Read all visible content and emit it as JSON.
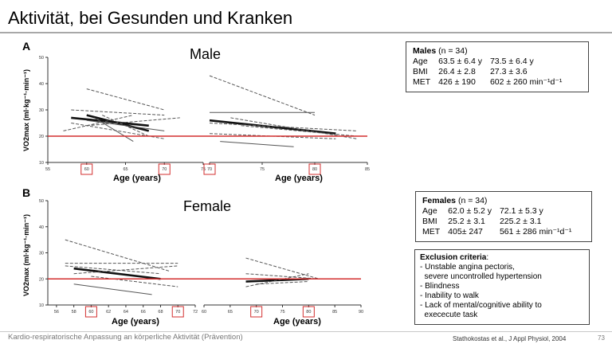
{
  "slide": {
    "title": "Aktivität, bei Gesunden und Kranken",
    "footer_text": "Kardio-respiratorische Anpassung an körperliche Aktivität (Prävention)",
    "citation": "Stathokostas et al., J Appl Physiol, 2004",
    "page_number": "73"
  },
  "panels": [
    {
      "letter": "A",
      "heading": "Male",
      "y_axis_label": "VO2max (ml·kg⁻¹·min⁻¹)",
      "x_axis_label": "Age (years)",
      "left_ticks": [
        "55",
        "60",
        "65",
        "70",
        "75"
      ],
      "right_ticks": [
        "70",
        "75",
        "80",
        "85"
      ],
      "y_ticks": [
        "10",
        "20",
        "30",
        "40",
        "50"
      ]
    },
    {
      "letter": "B",
      "heading": "Female",
      "y_axis_label": "VO2max (ml·kg⁻¹·min⁻¹)",
      "x_axis_label": "Age (years)",
      "left_ticks": [
        "56",
        "58",
        "60",
        "62",
        "64",
        "66",
        "68",
        "70",
        "72"
      ],
      "right_ticks": [
        "60",
        "65",
        "70",
        "75",
        "80",
        "85",
        "90"
      ],
      "y_ticks": [
        "10",
        "20",
        "30",
        "40",
        "50"
      ]
    }
  ],
  "males_box": {
    "header_bold": "Males",
    "header_rest": " (n = 34)",
    "rows": [
      [
        "Age",
        "63.5 ± 6.4 y",
        "73.5 ± 6.4 y"
      ],
      [
        "BMI",
        "26.4 ± 2.8",
        "27.3 ± 3.6"
      ],
      [
        "MET",
        "426 ± 190",
        "602 ± 260 min⁻¹d⁻¹"
      ]
    ]
  },
  "females_box": {
    "header_bold": "Females",
    "header_rest": "  (n = 34)",
    "rows": [
      [
        "Age",
        "62.0 ± 5.2 y",
        "72.1 ± 5.3 y"
      ],
      [
        "BMI",
        "25.2 ± 3.1",
        "225.2 ± 3.1"
      ],
      [
        "MET",
        "405± 247",
        "561 ± 286 min⁻¹d⁻¹"
      ]
    ]
  },
  "exclusion": {
    "title": "Exclusion criteria",
    "items": [
      "- Unstable angina pectoris,",
      "  severe uncontrolled hypertension",
      "- Blindness",
      "- Inability to walk",
      "- Lack of mental/cognitive ability to",
      "  exececute task"
    ]
  },
  "colors": {
    "threshold_line": "#d32f2f",
    "highlight_box": "#d32f2f",
    "series_line": "#555555",
    "mean_line": "#111111"
  },
  "chart_data": [
    {
      "type": "line",
      "title": "Male",
      "xlabel": "Age (years)",
      "ylabel": "VO2max (ml·kg-1·min-1)",
      "ylim": [
        10,
        50
      ],
      "threshold_y": 20,
      "subplots": [
        {
          "xlim": [
            55,
            75
          ],
          "highlight_ticks": [
            60,
            70
          ],
          "series": [
            {
              "x": [
                60,
                68
              ],
              "y": [
                28,
                22
              ],
              "style": "bold"
            },
            {
              "x": [
                58,
                68
              ],
              "y": [
                27,
                24
              ],
              "style": "bold"
            },
            {
              "x": [
                60,
                70
              ],
              "y": [
                38,
                30
              ],
              "style": "dashed"
            },
            {
              "x": [
                58,
                70
              ],
              "y": [
                30,
                28
              ],
              "style": "dashed"
            },
            {
              "x": [
                60,
                72
              ],
              "y": [
                24,
                27
              ],
              "style": "dashed"
            },
            {
              "x": [
                62,
                68
              ],
              "y": [
                28,
                20
              ],
              "style": "dashed"
            },
            {
              "x": [
                57,
                66
              ],
              "y": [
                22,
                28
              ],
              "style": "dashed"
            },
            {
              "x": [
                60,
                70
              ],
              "y": [
                26,
                22
              ],
              "style": "solid"
            },
            {
              "x": [
                61,
                66
              ],
              "y": [
                27,
                18
              ],
              "style": "solid"
            },
            {
              "x": [
                58,
                70
              ],
              "y": [
                25,
                19
              ],
              "style": "dashed"
            }
          ]
        },
        {
          "xlim": [
            70,
            85
          ],
          "highlight_ticks": [
            70,
            80
          ],
          "series": [
            {
              "x": [
                70,
                82
              ],
              "y": [
                26,
                21
              ],
              "style": "bold"
            },
            {
              "x": [
                70,
                80
              ],
              "y": [
                43,
                28
              ],
              "style": "dashed"
            },
            {
              "x": [
                70,
                80
              ],
              "y": [
                29,
                29
              ],
              "style": "solid"
            },
            {
              "x": [
                70,
                84
              ],
              "y": [
                25,
                22
              ],
              "style": "dashed"
            },
            {
              "x": [
                72,
                84
              ],
              "y": [
                27,
                19
              ],
              "style": "dashed"
            },
            {
              "x": [
                70,
                82
              ],
              "y": [
                21,
                19
              ],
              "style": "dashed"
            },
            {
              "x": [
                71,
                78
              ],
              "y": [
                18,
                16
              ],
              "style": "solid"
            },
            {
              "x": [
                73,
                84
              ],
              "y": [
                24,
                20
              ],
              "style": "dashed"
            }
          ]
        }
      ]
    },
    {
      "type": "line",
      "title": "Female",
      "xlabel": "Age (years)",
      "ylabel": "VO2max (ml·kg-1·min-1)",
      "ylim": [
        10,
        50
      ],
      "threshold_y": 20,
      "subplots": [
        {
          "xlim": [
            55,
            72
          ],
          "highlight_ticks": [
            60,
            70
          ],
          "series": [
            {
              "x": [
                58,
                68
              ],
              "y": [
                24,
                20
              ],
              "style": "bold"
            },
            {
              "x": [
                57,
                69
              ],
              "y": [
                35,
                23
              ],
              "style": "dashed"
            },
            {
              "x": [
                57,
                70
              ],
              "y": [
                26,
                26
              ],
              "style": "dashed"
            },
            {
              "x": [
                58,
                70
              ],
              "y": [
                22,
                25
              ],
              "style": "dashed"
            },
            {
              "x": [
                57,
                69
              ],
              "y": [
                20,
                20
              ],
              "style": "dashed"
            },
            {
              "x": [
                58,
                67
              ],
              "y": [
                18,
                14
              ],
              "style": "solid"
            },
            {
              "x": [
                57,
                68
              ],
              "y": [
                25,
                22
              ],
              "style": "dashed"
            },
            {
              "x": [
                60,
                70
              ],
              "y": [
                21,
                17
              ],
              "style": "dashed"
            }
          ]
        },
        {
          "xlim": [
            60,
            90
          ],
          "highlight_ticks": [
            70,
            80
          ],
          "series": [
            {
              "x": [
                68,
                80
              ],
              "y": [
                19,
                20
              ],
              "style": "bold"
            },
            {
              "x": [
                68,
                82
              ],
              "y": [
                28,
                20
              ],
              "style": "dashed"
            },
            {
              "x": [
                68,
                82
              ],
              "y": [
                22,
                20
              ],
              "style": "dashed"
            },
            {
              "x": [
                68,
                80
              ],
              "y": [
                17,
                22
              ],
              "style": "dashed"
            },
            {
              "x": [
                70,
                80
              ],
              "y": [
                18,
                19
              ],
              "style": "dashed"
            }
          ]
        }
      ]
    }
  ]
}
